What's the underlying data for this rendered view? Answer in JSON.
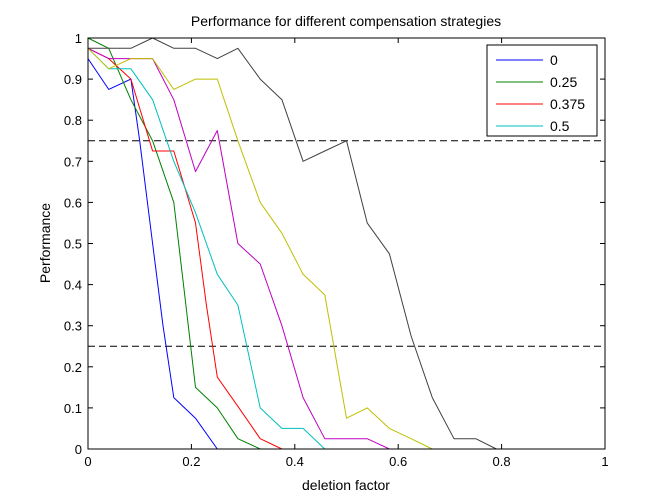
{
  "chart_data": {
    "type": "line",
    "title": "Performance for different compensation strategies",
    "xlabel": "deletion factor",
    "ylabel": "Performance",
    "xlim": [
      0,
      1
    ],
    "ylim": [
      0,
      1
    ],
    "xticks": [
      0,
      0.2,
      0.4,
      0.6,
      0.8,
      1
    ],
    "xtick_labels": [
      "0",
      "0.2",
      "0.4",
      "0.6",
      "0.8",
      "1"
    ],
    "yticks": [
      0,
      0.1,
      0.2,
      0.3,
      0.4,
      0.5,
      0.6,
      0.7,
      0.8,
      0.9,
      1
    ],
    "ytick_labels": [
      "0",
      "0.1",
      "0.2",
      "0.3",
      "0.4",
      "0.5",
      "0.6",
      "0.7",
      "0.8",
      "0.9",
      "1"
    ],
    "grid": false,
    "legend_position": "top-right",
    "reference_lines": [
      {
        "y": 0.75,
        "style": "dashed",
        "color": "#000000"
      },
      {
        "y": 0.25,
        "style": "dashed",
        "color": "#000000"
      }
    ],
    "series": [
      {
        "name": "0",
        "color": "#0000ff",
        "legend": true,
        "x": [
          0,
          0.04,
          0.083,
          0.1,
          0.125,
          0.145,
          0.166,
          0.208,
          0.25
        ],
        "y": [
          0.95,
          0.875,
          0.9,
          0.75,
          0.5,
          0.3,
          0.125,
          0.075,
          0
        ]
      },
      {
        "name": "0.25",
        "color": "#008000",
        "legend": true,
        "x": [
          0,
          0.04,
          0.083,
          0.125,
          0.166,
          0.187,
          0.208,
          0.25,
          0.29,
          0.333
        ],
        "y": [
          1,
          0.975,
          0.85,
          0.75,
          0.6,
          0.375,
          0.15,
          0.1,
          0.025,
          0
        ]
      },
      {
        "name": "0.375",
        "color": "#ff0000",
        "legend": true,
        "x": [
          0,
          0.04,
          0.083,
          0.125,
          0.166,
          0.208,
          0.229,
          0.25,
          0.292,
          0.333,
          0.375
        ],
        "y": [
          0.975,
          0.95,
          0.9,
          0.725,
          0.725,
          0.55,
          0.35,
          0.175,
          0.1,
          0.025,
          0
        ]
      },
      {
        "name": "0.5",
        "color": "#00bfbf",
        "legend": true,
        "x": [
          0,
          0.04,
          0.083,
          0.125,
          0.166,
          0.208,
          0.25,
          0.29,
          0.333,
          0.375,
          0.416,
          0.458
        ],
        "y": [
          0.975,
          0.925,
          0.925,
          0.85,
          0.7,
          0.575,
          0.425,
          0.35,
          0.1,
          0.05,
          0.05,
          0
        ]
      },
      {
        "name": "",
        "color": "#bf00bf",
        "legend": false,
        "x": [
          0,
          0.04,
          0.083,
          0.125,
          0.166,
          0.208,
          0.25,
          0.29,
          0.333,
          0.375,
          0.416,
          0.458,
          0.5,
          0.54,
          0.583
        ],
        "y": [
          0.975,
          0.95,
          0.95,
          0.95,
          0.85,
          0.675,
          0.775,
          0.5,
          0.45,
          0.3,
          0.125,
          0.025,
          0.025,
          0.025,
          0
        ]
      },
      {
        "name": "",
        "color": "#bfbf00",
        "legend": false,
        "x": [
          0,
          0.04,
          0.083,
          0.125,
          0.166,
          0.208,
          0.25,
          0.29,
          0.333,
          0.375,
          0.416,
          0.458,
          0.5,
          0.54,
          0.583,
          0.625,
          0.666
        ],
        "y": [
          0.975,
          0.925,
          0.95,
          0.95,
          0.875,
          0.9,
          0.9,
          0.75,
          0.6,
          0.525,
          0.425,
          0.375,
          0.075,
          0.1,
          0.05,
          0.025,
          0
        ]
      },
      {
        "name": "",
        "color": "#404040",
        "legend": false,
        "x": [
          0,
          0.04,
          0.083,
          0.125,
          0.166,
          0.208,
          0.25,
          0.29,
          0.333,
          0.375,
          0.416,
          0.458,
          0.5,
          0.54,
          0.583,
          0.625,
          0.666,
          0.708,
          0.75,
          0.79
        ],
        "y": [
          0.975,
          0.975,
          0.975,
          1,
          0.975,
          0.975,
          0.95,
          0.975,
          0.9,
          0.85,
          0.7,
          0.725,
          0.75,
          0.55,
          0.475,
          0.275,
          0.125,
          0.025,
          0.025,
          0
        ]
      }
    ]
  }
}
